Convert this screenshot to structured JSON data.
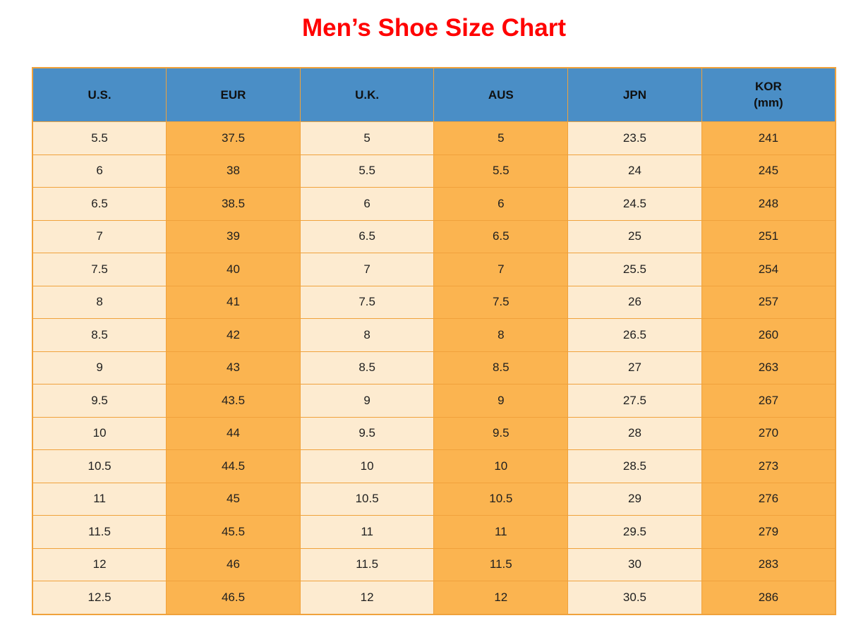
{
  "title": "Men’s Shoe Size Chart",
  "colors": {
    "page_bg": "#ffffff",
    "title_red": "#ff0000",
    "header_bg": "#4a8ec6",
    "header_text": "#101010",
    "cell_light_bg": "#fdebd0",
    "cell_orange_bg": "#fbb450",
    "border": "#f0a23c",
    "cell_text": "#1f1f1f"
  },
  "table": {
    "headers": [
      {
        "label": "U.S.",
        "sublabel": ""
      },
      {
        "label": "EUR",
        "sublabel": ""
      },
      {
        "label": "U.K.",
        "sublabel": ""
      },
      {
        "label": "AUS",
        "sublabel": ""
      },
      {
        "label": "JPN",
        "sublabel": ""
      },
      {
        "label": "KOR",
        "sublabel": "(mm)"
      }
    ],
    "rows": [
      [
        "5.5",
        "37.5",
        "5",
        "5",
        "23.5",
        "241"
      ],
      [
        "6",
        "38",
        "5.5",
        "5.5",
        "24",
        "245"
      ],
      [
        "6.5",
        "38.5",
        "6",
        "6",
        "24.5",
        "248"
      ],
      [
        "7",
        "39",
        "6.5",
        "6.5",
        "25",
        "251"
      ],
      [
        "7.5",
        "40",
        "7",
        "7",
        "25.5",
        "254"
      ],
      [
        "8",
        "41",
        "7.5",
        "7.5",
        "26",
        "257"
      ],
      [
        "8.5",
        "42",
        "8",
        "8",
        "26.5",
        "260"
      ],
      [
        "9",
        "43",
        "8.5",
        "8.5",
        "27",
        "263"
      ],
      [
        "9.5",
        "43.5",
        "9",
        "9",
        "27.5",
        "267"
      ],
      [
        "10",
        "44",
        "9.5",
        "9.5",
        "28",
        "270"
      ],
      [
        "10.5",
        "44.5",
        "10",
        "10",
        "28.5",
        "273"
      ],
      [
        "11",
        "45",
        "10.5",
        "10.5",
        "29",
        "276"
      ],
      [
        "11.5",
        "45.5",
        "11",
        "11",
        "29.5",
        "279"
      ],
      [
        "12",
        "46",
        "11.5",
        "11.5",
        "30",
        "283"
      ],
      [
        "12.5",
        "46.5",
        "12",
        "12",
        "30.5",
        "286"
      ]
    ]
  },
  "chart_data": {
    "type": "table",
    "title": "Men’s Shoe Size Chart",
    "columns": [
      "U.S.",
      "EUR",
      "U.K.",
      "AUS",
      "JPN",
      "KOR (mm)"
    ],
    "rows": [
      [
        5.5,
        37.5,
        5,
        5,
        23.5,
        241
      ],
      [
        6,
        38,
        5.5,
        5.5,
        24,
        245
      ],
      [
        6.5,
        38.5,
        6,
        6,
        24.5,
        248
      ],
      [
        7,
        39,
        6.5,
        6.5,
        25,
        251
      ],
      [
        7.5,
        40,
        7,
        7,
        25.5,
        254
      ],
      [
        8,
        41,
        7.5,
        7.5,
        26,
        257
      ],
      [
        8.5,
        42,
        8,
        8,
        26.5,
        260
      ],
      [
        9,
        43,
        8.5,
        8.5,
        27,
        263
      ],
      [
        9.5,
        43.5,
        9,
        9,
        27.5,
        267
      ],
      [
        10,
        44,
        9.5,
        9.5,
        28,
        270
      ],
      [
        10.5,
        44.5,
        10,
        10,
        28.5,
        273
      ],
      [
        11,
        45,
        10.5,
        10.5,
        29,
        276
      ],
      [
        11.5,
        45.5,
        11,
        11,
        29.5,
        279
      ],
      [
        12,
        46,
        11.5,
        11.5,
        30,
        283
      ],
      [
        12.5,
        46.5,
        12,
        12,
        30.5,
        286
      ]
    ],
    "layout": {
      "header_position": "top",
      "grid": true
    }
  }
}
